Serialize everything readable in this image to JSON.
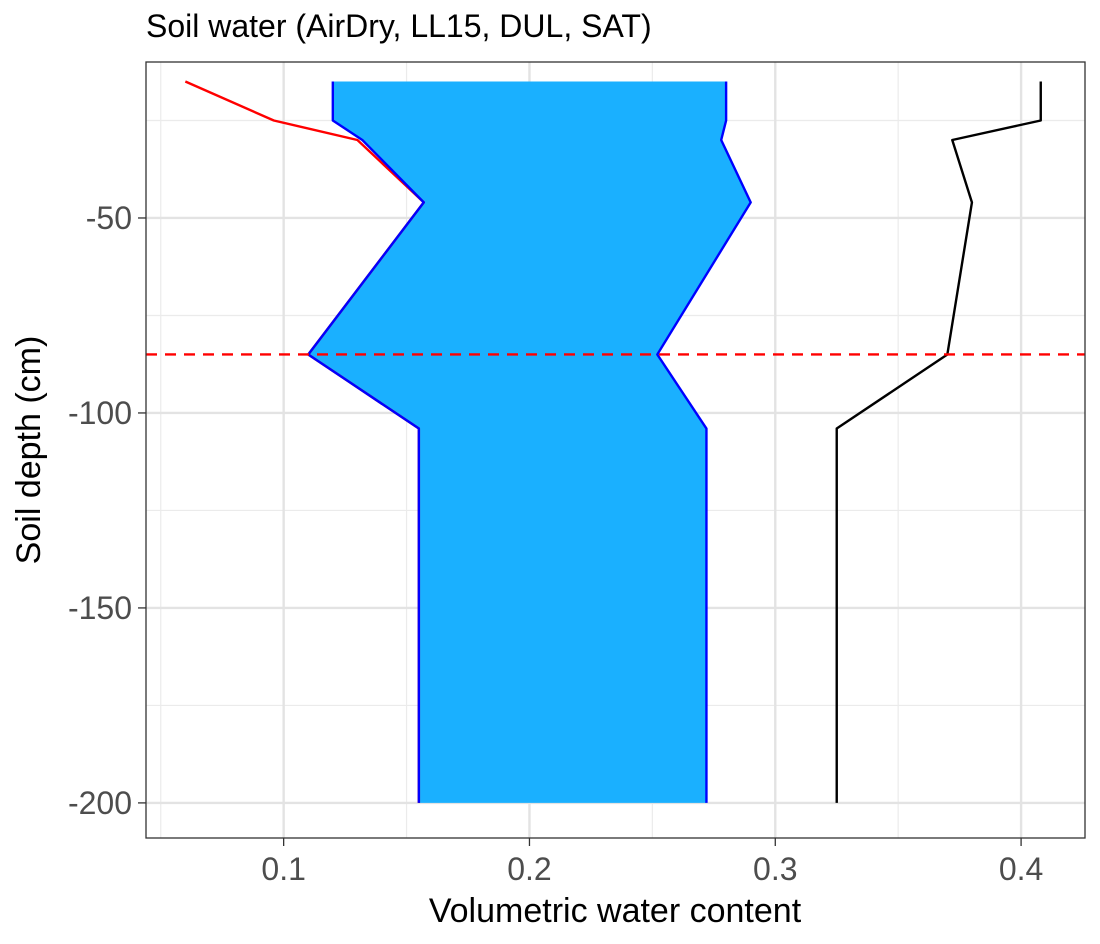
{
  "chart_data": {
    "type": "line",
    "title": "Soil water (AirDry, LL15, DUL, SAT)",
    "xlabel": "Volumetric water content",
    "ylabel": "Soil depth (cm)",
    "xlim": [
      0.044,
      0.426
    ],
    "ylim": [
      -209,
      -10
    ],
    "x_ticks": [
      0.1,
      0.2,
      0.3,
      0.4
    ],
    "x_tick_labels": [
      "0.1",
      "0.2",
      "0.3",
      "0.4"
    ],
    "y_ticks": [
      -50,
      -100,
      -150,
      -200
    ],
    "y_tick_labels": [
      "-50",
      "-100",
      "-150",
      "-200"
    ],
    "grid": true,
    "legend": "none",
    "series": [
      {
        "role": "airdry",
        "color": "#ff0000",
        "points": [
          [
            0.06,
            -15
          ],
          [
            0.096,
            -25
          ],
          [
            0.13,
            -30
          ],
          [
            0.157,
            -46
          ],
          [
            0.11,
            -85
          ],
          [
            0.155,
            -104
          ],
          [
            0.155,
            -200
          ]
        ]
      },
      {
        "role": "ll15",
        "color": "#0000ff",
        "points": [
          [
            0.12,
            -15
          ],
          [
            0.12,
            -25
          ],
          [
            0.132,
            -30
          ],
          [
            0.157,
            -46
          ],
          [
            0.11,
            -85
          ],
          [
            0.155,
            -104
          ],
          [
            0.155,
            -200
          ]
        ]
      },
      {
        "role": "dul",
        "color": "#0000ff",
        "points": [
          [
            0.28,
            -15
          ],
          [
            0.28,
            -25
          ],
          [
            0.278,
            -30
          ],
          [
            0.29,
            -46
          ],
          [
            0.252,
            -85
          ],
          [
            0.272,
            -104
          ],
          [
            0.272,
            -200
          ]
        ]
      },
      {
        "role": "sat",
        "color": "#000000",
        "points": [
          [
            0.408,
            -15
          ],
          [
            0.408,
            -25
          ],
          [
            0.372,
            -30
          ],
          [
            0.38,
            -46
          ],
          [
            0.37,
            -85
          ],
          [
            0.325,
            -104
          ],
          [
            0.325,
            -200
          ]
        ]
      }
    ],
    "fill_between": {
      "lower": "ll15",
      "upper": "dul",
      "color": "#1ab0ff"
    },
    "hline": {
      "y": -85,
      "color": "#ff0000",
      "style": "dashed"
    }
  }
}
